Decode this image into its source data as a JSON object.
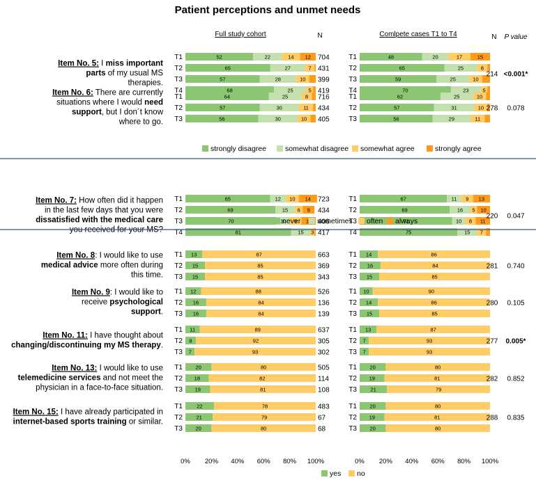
{
  "chart_data": {
    "type": "bar",
    "title": "Patient perceptions and unmet needs",
    "headers": {
      "left": "Full study cohort",
      "right": "Comlpete cases T1 to T4",
      "n_left": "N",
      "n_right": "N",
      "p_value": "P value"
    },
    "x_ticks": [
      "0%",
      "20%",
      "40%",
      "60%",
      "80%",
      "100%"
    ],
    "colors": {
      "strongly_disagree": "#8cc672",
      "somewhat_disagree": "#c3e0ae",
      "somewhat_agree": "#ffcc66",
      "strongly_agree": "#ff9a1a",
      "never": "#8cc672",
      "sometimes": "#c3e0ae",
      "often": "#ffcc66",
      "always": "#ff9a1a",
      "yes": "#8cc672",
      "no": "#ffcc66",
      "divider": "#3a4f8f"
    },
    "legends": [
      {
        "keys": [
          "strongly_disagree",
          "somewhat_disagree",
          "somewhat_agree",
          "strongly_agree"
        ],
        "labels": [
          "strongly disagree",
          "somewhat disagree",
          "somewhat agree",
          "strongly agree"
        ]
      },
      {
        "keys": [
          "never",
          "sometimes",
          "often",
          "always"
        ],
        "labels": [
          "never",
          "sometimes",
          "often",
          "always"
        ]
      },
      {
        "keys": [
          "yes",
          "no"
        ],
        "labels": [
          "yes",
          "no"
        ]
      }
    ],
    "items": [
      {
        "label": [
          [
            [
              "Item No. 5:",
              "u"
            ],
            [
              " I ",
              ""
            ],
            [
              "miss important",
              "b"
            ]
          ],
          [
            [
              "parts",
              "b"
            ],
            [
              " of my usual MS",
              ""
            ]
          ],
          [
            [
              "therapies.",
              ""
            ]
          ]
        ],
        "categories": [
          "strongly_disagree",
          "somewhat_disagree",
          "somewhat_agree",
          "strongly_agree"
        ],
        "full": [
          {
            "time": "T1",
            "values": [
              52,
              22,
              14,
              12
            ],
            "n": "704"
          },
          {
            "time": "T2",
            "values": [
              65,
              27,
              7,
              1
            ],
            "labels": [
              "65",
              "27",
              "7",
              ""
            ],
            "n": "431"
          },
          {
            "time": "T3",
            "values": [
              57,
              28,
              10,
              5
            ],
            "labels": [
              "57",
              "28",
              "10",
              ""
            ],
            "n": "399"
          },
          {
            "time": "T4",
            "values": [
              68,
              25,
              5,
              2
            ],
            "labels": [
              "68",
              "25",
              "5",
              ""
            ],
            "n": "419"
          }
        ],
        "complete": [
          {
            "time": "T1",
            "values": [
              48,
              20,
              17,
              15
            ]
          },
          {
            "time": "T2",
            "values": [
              65,
              25,
              8,
              2
            ],
            "labels": [
              "65",
              "25",
              "8",
              ""
            ]
          },
          {
            "time": "T3",
            "values": [
              59,
              25,
              10,
              6
            ],
            "labels": [
              "59",
              "25",
              "10",
              ""
            ]
          },
          {
            "time": "T4",
            "values": [
              70,
              23,
              5,
              2
            ],
            "labels": [
              "70",
              "23",
              "5",
              ""
            ]
          }
        ],
        "n": "214",
        "p": "<0.001*",
        "p_bold": true
      },
      {
        "label": [
          [
            [
              "Item No. 6:",
              "u"
            ],
            [
              " There are currently",
              ""
            ]
          ],
          [
            [
              "situations where I would ",
              ""
            ],
            [
              "need",
              "b"
            ]
          ],
          [
            [
              "support",
              "b"
            ],
            [
              ", but I don´t know",
              ""
            ]
          ],
          [
            [
              "where to go.",
              ""
            ]
          ]
        ],
        "categories": [
          "strongly_disagree",
          "somewhat_disagree",
          "somewhat_agree",
          "strongly_agree"
        ],
        "full": [
          {
            "time": "T1",
            "values": [
              64,
              25,
              8,
              3
            ],
            "labels": [
              "64",
              "25",
              "8",
              ""
            ],
            "n": "716"
          },
          {
            "time": "T2",
            "values": [
              57,
              30,
              11,
              2
            ],
            "labels": [
              "57",
              "30",
              "11",
              ""
            ],
            "n": "434"
          },
          {
            "time": "T3",
            "values": [
              56,
              30,
              10,
              4
            ],
            "labels": [
              "56",
              "30",
              "10",
              ""
            ],
            "n": "405"
          }
        ],
        "complete": [
          {
            "time": "T1",
            "values": [
              62,
              25,
              10,
              3
            ],
            "labels": [
              "62",
              "25",
              "10",
              ""
            ]
          },
          {
            "time": "T2",
            "values": [
              57,
              31,
              10,
              2
            ],
            "labels": [
              "57",
              "31",
              "10",
              ""
            ]
          },
          {
            "time": "T3",
            "values": [
              56,
              29,
              11,
              4
            ],
            "labels": [
              "56",
              "29",
              "11",
              ""
            ]
          }
        ],
        "n": "278",
        "p": "0.078"
      },
      {
        "label": [
          [
            [
              "Item No. 7:",
              "u"
            ],
            [
              " How often did it happen",
              ""
            ]
          ],
          [
            [
              "in the last few days that you were",
              ""
            ]
          ],
          [
            [
              "dissatisfied with the medical care",
              "b"
            ]
          ],
          [
            [
              "you received for your MS?",
              ""
            ]
          ]
        ],
        "categories": [
          "never",
          "sometimes",
          "often",
          "always"
        ],
        "full": [
          {
            "time": "T1",
            "values": [
              65,
              12,
              10,
              14
            ],
            "n": "723"
          },
          {
            "time": "T2",
            "values": [
              69,
              15,
              6,
              9
            ],
            "n": "434"
          },
          {
            "time": "T3",
            "values": [
              70,
              10,
              9,
              11
            ],
            "n": "406"
          },
          {
            "time": "T4",
            "values": [
              81,
              15,
              3,
              1
            ],
            "labels": [
              "81",
              "15",
              "3",
              ""
            ],
            "n": "417"
          }
        ],
        "complete": [
          {
            "time": "T1",
            "values": [
              67,
              11,
              9,
              13
            ]
          },
          {
            "time": "T2",
            "values": [
              69,
              16,
              5,
              10
            ]
          },
          {
            "time": "T3",
            "values": [
              71,
              10,
              8,
              11
            ]
          },
          {
            "time": "T4",
            "values": [
              75,
              15,
              7,
              3
            ],
            "labels": [
              "75",
              "15",
              "7",
              ""
            ]
          }
        ],
        "n": "220",
        "p": "0.047"
      },
      {
        "label": [
          [
            [
              "Item No. 8",
              "u"
            ],
            [
              ": I would like to use",
              ""
            ]
          ],
          [
            [
              "medical advice",
              "b"
            ],
            [
              " more often during",
              ""
            ]
          ],
          [
            [
              "this time.",
              ""
            ]
          ]
        ],
        "categories": [
          "yes",
          "no"
        ],
        "full": [
          {
            "time": "T1",
            "values": [
              13,
              87
            ],
            "n": "663"
          },
          {
            "time": "T2",
            "values": [
              15,
              85
            ],
            "n": "369"
          },
          {
            "time": "T3",
            "values": [
              15,
              85
            ],
            "n": "343"
          }
        ],
        "complete": [
          {
            "time": "T1",
            "values": [
              14,
              86
            ]
          },
          {
            "time": "T2",
            "values": [
              16,
              84
            ]
          },
          {
            "time": "T3",
            "values": [
              15,
              85
            ]
          }
        ],
        "n": "281",
        "p": "0.740"
      },
      {
        "label": [
          [
            [
              "Item No. 9",
              "u"
            ],
            [
              ": I would like to",
              ""
            ]
          ],
          [
            [
              "receive ",
              ""
            ],
            [
              "psychological",
              "b"
            ]
          ],
          [
            [
              "support",
              "b"
            ],
            [
              ".",
              ""
            ]
          ]
        ],
        "categories": [
          "yes",
          "no"
        ],
        "full": [
          {
            "time": "T1",
            "values": [
              12,
              88
            ],
            "n": "526"
          },
          {
            "time": "T2",
            "values": [
              16,
              84
            ],
            "n": "136"
          },
          {
            "time": "T3",
            "values": [
              16,
              84
            ],
            "n": "139"
          }
        ],
        "complete": [
          {
            "time": "T1",
            "values": [
              10,
              90
            ]
          },
          {
            "time": "T2",
            "values": [
              14,
              86
            ]
          },
          {
            "time": "T3",
            "values": [
              15,
              85
            ]
          }
        ],
        "n": "280",
        "p": "0.105"
      },
      {
        "label": [
          [
            [
              "Item No. 11:",
              "u"
            ],
            [
              " I have thought about",
              ""
            ]
          ],
          [
            [
              "changing/discontinuing my MS therapy",
              "b"
            ],
            [
              ".",
              ""
            ]
          ]
        ],
        "categories": [
          "yes",
          "no"
        ],
        "full": [
          {
            "time": "T1",
            "values": [
              11,
              89
            ],
            "n": "637"
          },
          {
            "time": "T2",
            "values": [
              8,
              92
            ],
            "n": "305"
          },
          {
            "time": "T3",
            "values": [
              7,
              93
            ],
            "n": "302"
          }
        ],
        "complete": [
          {
            "time": "T1",
            "values": [
              13,
              87
            ]
          },
          {
            "time": "T2",
            "values": [
              7,
              93
            ]
          },
          {
            "time": "T3",
            "values": [
              7,
              93
            ]
          }
        ],
        "n": "277",
        "p": "0.005*",
        "p_bold": true
      },
      {
        "label": [
          [
            [
              "Item No. 13:",
              "u"
            ],
            [
              " I would like to use",
              ""
            ]
          ],
          [
            [
              "telemedicine services",
              "b"
            ],
            [
              " and not meet the",
              ""
            ]
          ],
          [
            [
              "physician in a face-to-face situation.",
              ""
            ]
          ]
        ],
        "categories": [
          "yes",
          "no"
        ],
        "full": [
          {
            "time": "T1",
            "values": [
              20,
              80
            ],
            "n": "505"
          },
          {
            "time": "T2",
            "values": [
              18,
              82
            ],
            "n": "114"
          },
          {
            "time": "T3",
            "values": [
              19,
              81
            ],
            "n": "108"
          }
        ],
        "complete": [
          {
            "time": "T1",
            "values": [
              20,
              80
            ]
          },
          {
            "time": "T2",
            "values": [
              19,
              81
            ]
          },
          {
            "time": "T3",
            "values": [
              21,
              79
            ]
          }
        ],
        "n": "282",
        "p": "0.852"
      },
      {
        "label": [
          [
            [
              "Item No. 15:",
              "u"
            ],
            [
              " I have already participated in",
              ""
            ]
          ],
          [
            [
              "internet-based sports training",
              "b"
            ],
            [
              " or similar.",
              ""
            ]
          ]
        ],
        "categories": [
          "yes",
          "no"
        ],
        "full": [
          {
            "time": "T1",
            "values": [
              22,
              78
            ],
            "n": "483"
          },
          {
            "time": "T2",
            "values": [
              21,
              79
            ],
            "n": "67"
          },
          {
            "time": "T3",
            "values": [
              20,
              80
            ],
            "n": "68"
          }
        ],
        "complete": [
          {
            "time": "T1",
            "values": [
              20,
              80
            ]
          },
          {
            "time": "T2",
            "values": [
              19,
              81
            ]
          },
          {
            "time": "T3",
            "values": [
              20,
              80
            ]
          }
        ],
        "n": "288",
        "p": "0.835"
      }
    ]
  }
}
